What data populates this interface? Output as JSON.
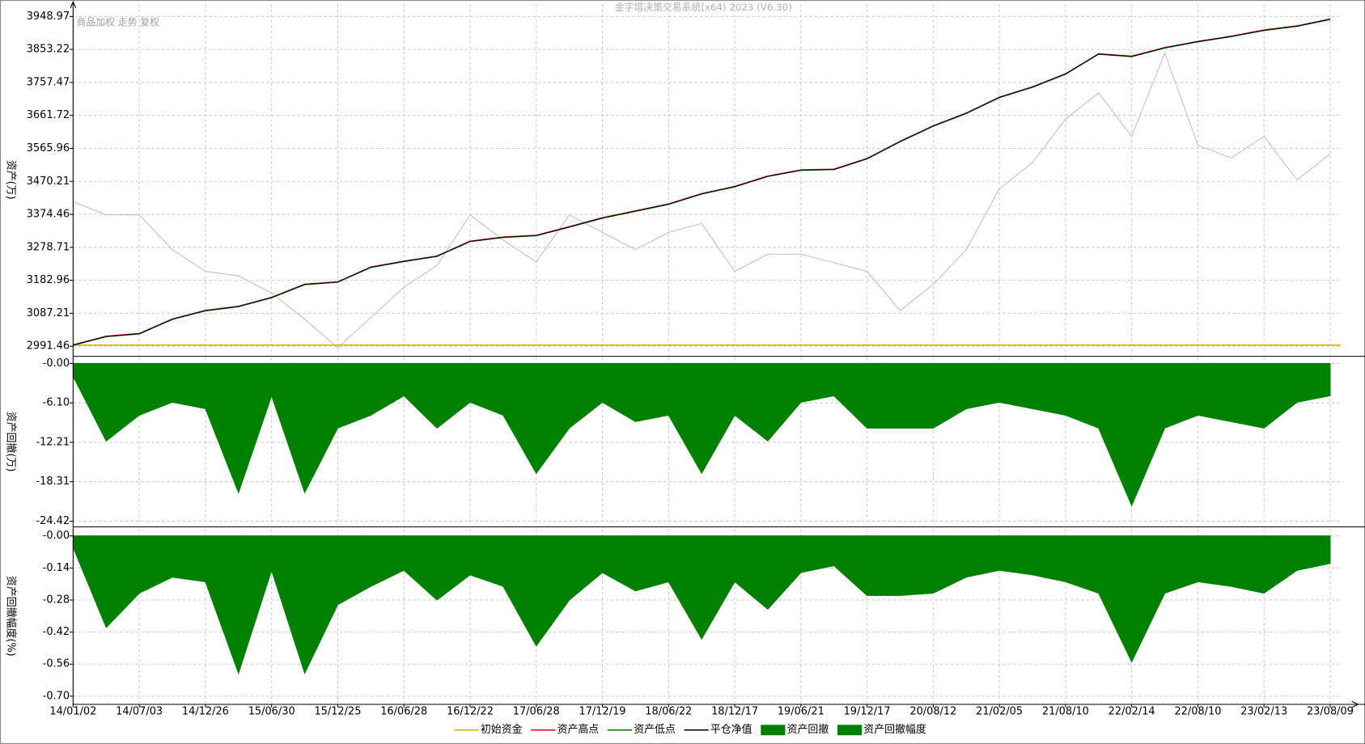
{
  "chart_data": {
    "type": "multi-panel",
    "title": "金字塔决策交易系统(x64) 2023 (V6.30)",
    "subtitle": "商品加权 走势 复权",
    "grid": true,
    "categories": [
      "14/01/02",
      null,
      "14/07/03",
      null,
      "14/12/26",
      null,
      "15/06/30",
      null,
      "15/12/25",
      null,
      "16/06/28",
      null,
      "16/12/22",
      null,
      "17/06/28",
      null,
      "17/12/19",
      null,
      "18/06/22",
      null,
      "18/12/17",
      null,
      "19/06/21",
      null,
      "19/12/17",
      null,
      "20/08/12",
      null,
      "21/02/05",
      null,
      "21/08/10",
      null,
      "22/02/14",
      null,
      "22/08/10",
      null,
      "23/02/13",
      null,
      "23/08/09"
    ],
    "panels": [
      {
        "type": "line",
        "ylabel": "资产(万)",
        "ylim": [
          2966,
          3984
        ],
        "yticks": [
          2991.46,
          3087.21,
          3182.96,
          3278.71,
          3374.46,
          3470.21,
          3565.96,
          3661.72,
          3757.47,
          3853.22,
          3948.97
        ],
        "series": [
          {
            "color": "#c0c0c0",
            "values": [
              3411,
              3373,
              3373,
              3272,
              3209,
              3196,
              3146,
              3070,
              2987,
              3075,
              3163,
              3226,
              3373,
              3300,
              3236,
              3373,
              3322,
              3272,
              3322,
              3348,
              3209,
              3259,
              3259,
              3234,
              3209,
              3095,
              3171,
              3272,
              3449,
              3525,
              3651,
              3727,
              3601,
              3843,
              3575,
              3538,
              3601,
              3474,
              3550
            ]
          },
          {
            "name": "初始资金",
            "color": "#d4b000",
            "value": 2995
          },
          {
            "name": "资产高点",
            "color": "#ff0000",
            "values": [
              2996,
              3021,
              3029,
              3071,
              3096,
              3108,
              3134,
              3172,
              3179,
              3222,
              3239,
              3254,
              3297,
              3309,
              3314,
              3339,
              3365,
              3385,
              3405,
              3435,
              3456,
              3486,
              3504,
              3506,
              3537,
              3587,
              3632,
              3669,
              3715,
              3745,
              3783,
              3841,
              3834,
              3859,
              3877,
              3892,
              3910,
              3922,
              3942
            ]
          },
          {
            "name": "资产低点",
            "color": "#008000",
            "values": [
              2994,
              3019,
              3027,
              3069,
              3094,
              3106,
              3132,
              3170,
              3177,
              3220,
              3237,
              3252,
              3295,
              3307,
              3312,
              3337,
              3363,
              3383,
              3403,
              3433,
              3454,
              3484,
              3502,
              3504,
              3535,
              3585,
              3630,
              3667,
              3713,
              3743,
              3781,
              3839,
              3832,
              3857,
              3875,
              3890,
              3908,
              3920,
              3940
            ]
          },
          {
            "name": "平仓净值",
            "color": "#000000",
            "values": [
              2995,
              3020,
              3028,
              3070,
              3095,
              3107,
              3133,
              3171,
              3178,
              3221,
              3238,
              3253,
              3296,
              3308,
              3313,
              3338,
              3364,
              3384,
              3404,
              3434,
              3455,
              3485,
              3503,
              3505,
              3536,
              3586,
              3631,
              3668,
              3714,
              3744,
              3782,
              3840,
              3833,
              3858,
              3876,
              3891,
              3909,
              3921,
              3941
            ]
          }
        ]
      },
      {
        "type": "area",
        "ylabel": "资产回撤(万)",
        "ylim": [
          -25.1,
          0.9
        ],
        "yticks": [
          {
            "value": 0,
            "label": "-0.00"
          },
          {
            "value": -6.1,
            "label": "-6.10"
          },
          -12.21,
          -18.31,
          -24.42
        ],
        "series": [
          {
            "name": "资产回撤",
            "color": "#008000",
            "values": [
              -2,
              -12,
              -8,
              -6,
              -7,
              -20,
              -5,
              -20,
              -10,
              -8,
              -5,
              -10,
              -6,
              -8,
              -17,
              -10,
              -6,
              -9,
              -8,
              -17,
              -8,
              -12,
              -6,
              -5,
              -10,
              -10,
              -10,
              -7,
              -6,
              -7,
              -8,
              -10,
              -22,
              -10,
              -8,
              -9,
              -10,
              -6,
              -5
            ]
          }
        ]
      },
      {
        "type": "area",
        "ylabel": "资产回撤幅度(%)",
        "ylim": [
          -0.73,
          0.03
        ],
        "yticks": [
          {
            "value": 0,
            "label": "-0.00"
          },
          -0.14,
          -0.28,
          -0.42,
          -0.56,
          {
            "value": -0.7,
            "label": "-0.70"
          }
        ],
        "series": [
          {
            "name": "资产回撤幅度",
            "color": "#008000",
            "values": [
              -0.05,
              -0.4,
              -0.25,
              -0.18,
              -0.2,
              -0.6,
              -0.15,
              -0.6,
              -0.3,
              -0.22,
              -0.15,
              -0.28,
              -0.17,
              -0.22,
              -0.48,
              -0.28,
              -0.16,
              -0.24,
              -0.2,
              -0.45,
              -0.2,
              -0.32,
              -0.16,
              -0.13,
              -0.26,
              -0.26,
              -0.25,
              -0.18,
              -0.15,
              -0.17,
              -0.2,
              -0.25,
              -0.55,
              -0.25,
              -0.2,
              -0.22,
              -0.25,
              -0.15,
              -0.12
            ]
          }
        ]
      }
    ]
  }
}
